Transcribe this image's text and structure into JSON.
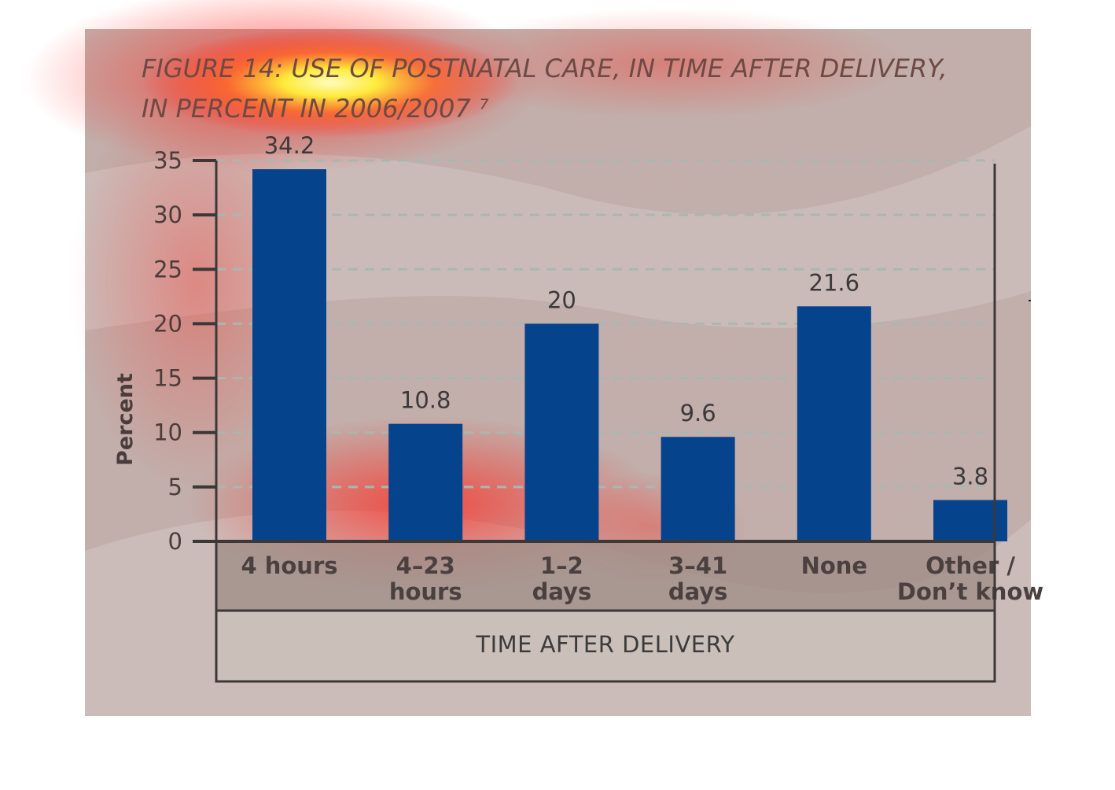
{
  "chart_data": {
    "type": "bar",
    "title": "FIGURE 14: USE OF POSTNATAL CARE, IN TIME AFTER DELIVERY,",
    "subtitle": "IN PERCENT IN 2006/2007 ⁷",
    "categories": [
      [
        "4 hours"
      ],
      [
        "4–23",
        "hours"
      ],
      [
        "1–2",
        "days"
      ],
      [
        "3–41",
        "days"
      ],
      [
        "None"
      ],
      [
        "Other /",
        "Don’t know"
      ]
    ],
    "values": [
      34.2,
      10.8,
      20,
      9.6,
      21.6,
      3.8
    ],
    "value_labels": [
      "34.2",
      "10.8",
      "20",
      "9.6",
      "21.6",
      "3.8"
    ],
    "ylabel": "Percent",
    "xlabel": "TIME AFTER DELIVERY",
    "ylim": [
      0,
      35
    ],
    "yticks": [
      0,
      5,
      10,
      15,
      20,
      25,
      30,
      35
    ],
    "grid": true,
    "colors": {
      "bar": "#05438d",
      "background": "#c2aeaa",
      "category_band": "#a08d87",
      "xlabel_band": "#c9bdb6",
      "axis": "#3d3838",
      "gridline": "#a9b7b3",
      "heat_hot": "#fff33a",
      "heat_warm": "#ff2a20"
    }
  }
}
